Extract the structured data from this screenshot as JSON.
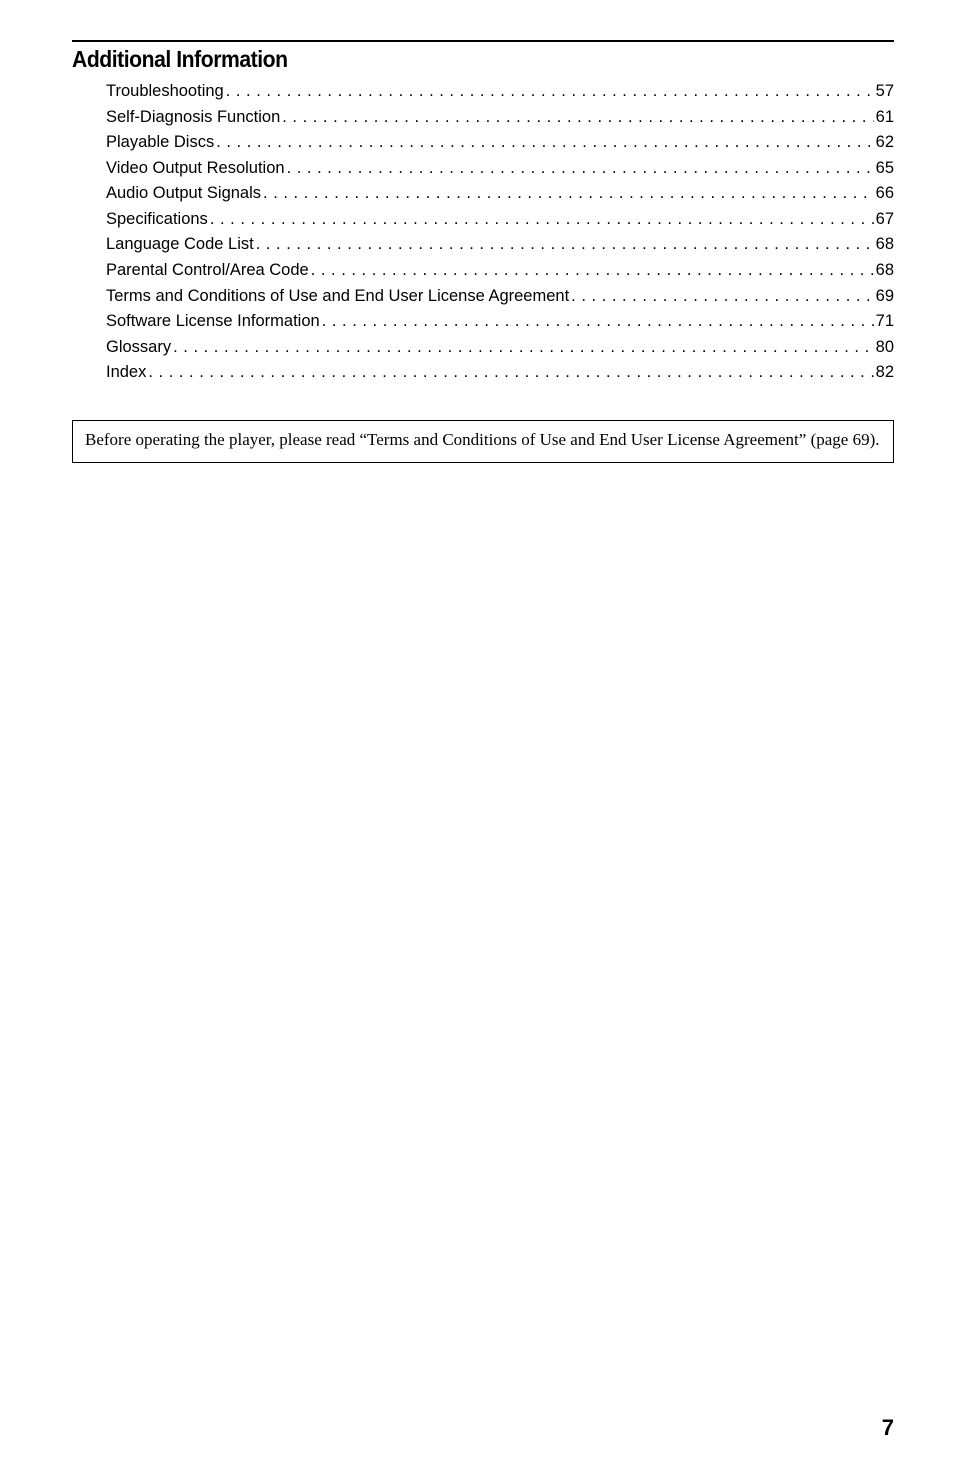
{
  "section_title": "Additional Information",
  "toc": [
    {
      "label": "Troubleshooting",
      "page": "57"
    },
    {
      "label": "Self-Diagnosis Function",
      "page": "61"
    },
    {
      "label": "Playable Discs",
      "page": "62"
    },
    {
      "label": "Video Output Resolution",
      "page": "65"
    },
    {
      "label": "Audio Output Signals",
      "page": "66"
    },
    {
      "label": "Specifications",
      "page": "67"
    },
    {
      "label": "Language Code List",
      "page": "68"
    },
    {
      "label": "Parental Control/Area Code",
      "page": "68"
    },
    {
      "label": "Terms and Conditions of Use and End User License Agreement",
      "page": "69"
    },
    {
      "label": "Software License Information",
      "page": "71"
    },
    {
      "label": "Glossary",
      "page": "80"
    },
    {
      "label": "Index",
      "page": "82"
    }
  ],
  "note_text": "Before operating the player, please read “Terms and Conditions of Use and End User License Agreement” (page 69).",
  "page_number": "7",
  "colors": {
    "text": "#000000",
    "background": "#ffffff",
    "rule": "#000000",
    "border": "#000000"
  },
  "typography": {
    "section_title_fontsize": 23,
    "toc_fontsize": 16.5,
    "note_fontsize": 17,
    "page_number_fontsize": 22
  }
}
